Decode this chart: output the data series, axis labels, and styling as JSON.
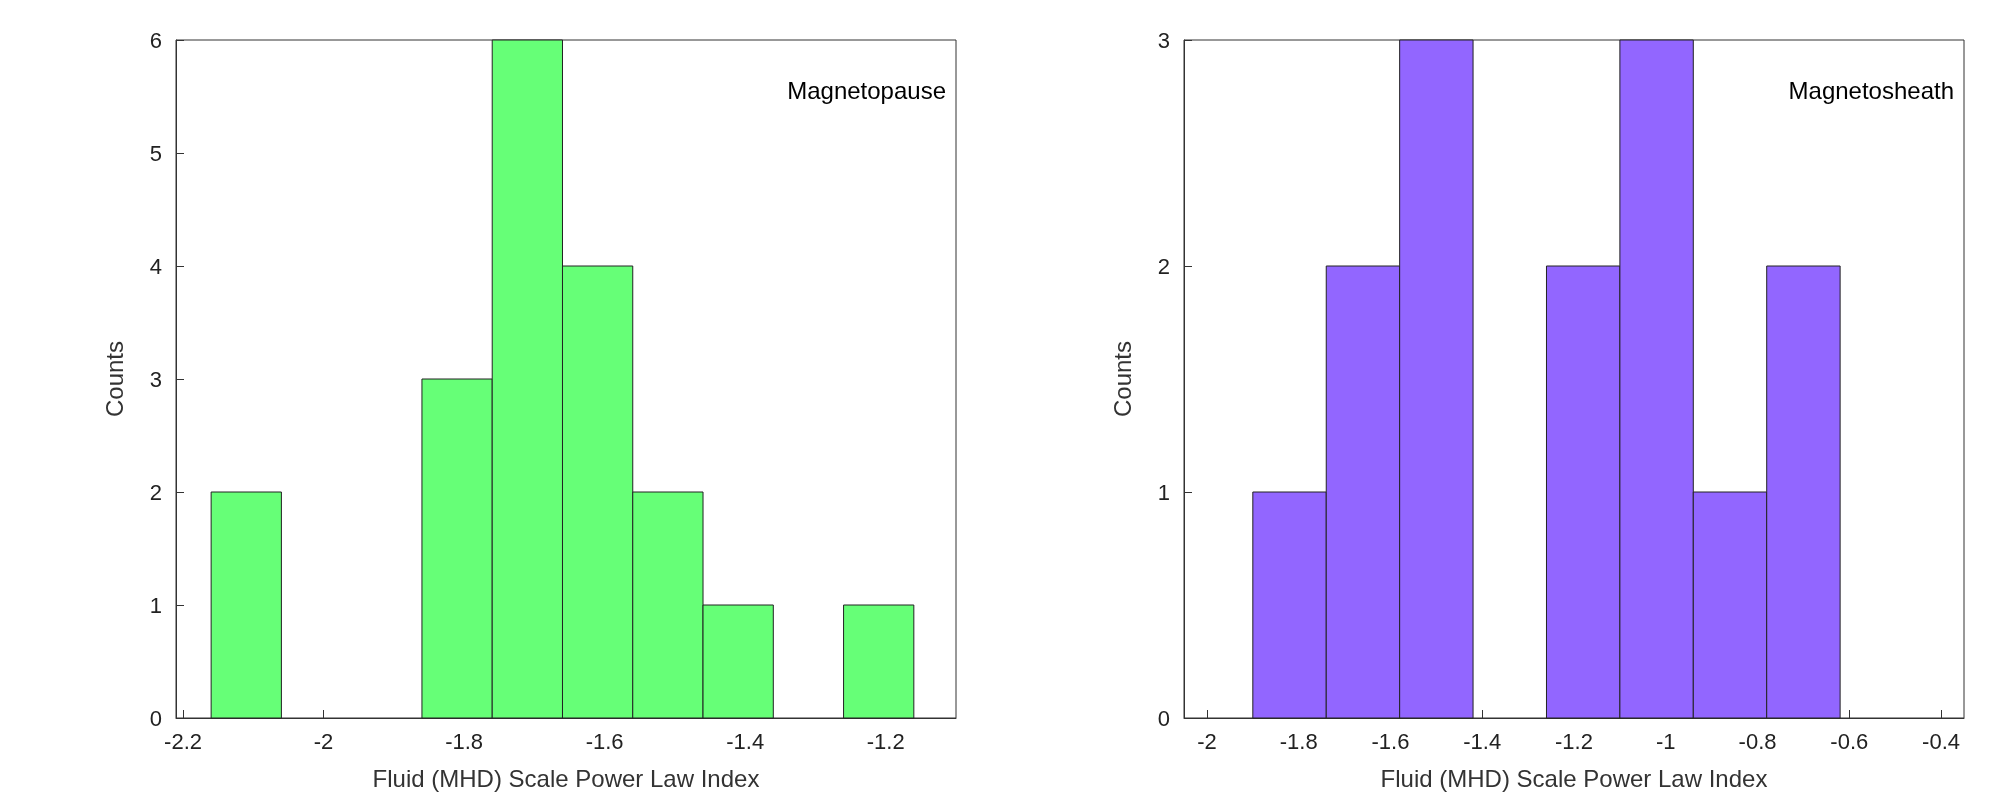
{
  "chart_data": [
    {
      "type": "histogram",
      "xlabel": "Fluid (MHD) Scale Power Law Index",
      "ylabel": "Counts",
      "annotations": [
        "Magnetopause"
      ],
      "color": "#66ff77",
      "bins": [
        -2.16,
        -2.06,
        -1.96,
        -1.86,
        -1.76,
        -1.66,
        -1.56,
        -1.46,
        -1.36,
        -1.26,
        -1.16
      ],
      "values": [
        2,
        0,
        0,
        3,
        6,
        4,
        2,
        1,
        0,
        1
      ],
      "xlim": [
        -2.21,
        -1.1
      ],
      "xticks": [
        -2.2,
        -2,
        -1.8,
        -1.6,
        -1.4,
        -1.2
      ],
      "ylim": [
        0,
        6
      ],
      "yticks": [
        0,
        1,
        2,
        3,
        4,
        5,
        6
      ],
      "grid": false
    },
    {
      "type": "histogram",
      "xlabel": "Fluid (MHD) Scale Power Law Index",
      "ylabel": "Counts",
      "annotations": [
        "Magnetosheath"
      ],
      "color": "#9266ff",
      "bins": [
        -1.9,
        -1.74,
        -1.58,
        -1.42,
        -1.26,
        -1.1,
        -0.94,
        -0.78,
        -0.62
      ],
      "values": [
        1,
        2,
        3,
        0,
        2,
        3,
        1,
        2
      ],
      "xlim": [
        -2.05,
        -0.35
      ],
      "xticks": [
        -2,
        -1.8,
        -1.6,
        -1.4,
        -1.2,
        -1,
        -0.8,
        -0.6,
        -0.4
      ],
      "ylim": [
        0,
        3
      ],
      "yticks": [
        0,
        1,
        2,
        3
      ],
      "grid": false
    }
  ]
}
